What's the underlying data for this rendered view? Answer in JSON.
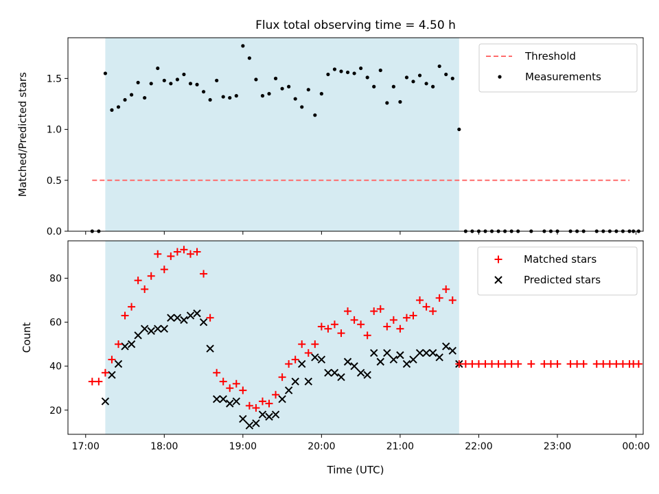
{
  "chart_data": [
    {
      "type": "scatter",
      "title": "Flux total observing time = 4.50 h",
      "xlabel": "",
      "ylabel": "Matched/Predicted stars",
      "ylim": [
        0,
        1.9
      ],
      "yticks": [
        0.0,
        0.5,
        1.0,
        1.5
      ],
      "xticks": [
        "17:00",
        "18:00",
        "19:00",
        "20:00",
        "21:00",
        "22:00",
        "23:00",
        "00:00"
      ],
      "shaded_interval": [
        "17:15",
        "21:45"
      ],
      "shade_color": "#add8e6",
      "legend_position": "top-right",
      "series": [
        {
          "name": "Threshold",
          "style": "dashed-line",
          "color": "#ff6b6b",
          "x": [
            "17:05",
            "23:55"
          ],
          "y": [
            0.5,
            0.5
          ]
        },
        {
          "name": "Measurements",
          "style": "dots",
          "color": "#000000",
          "x": [
            "17:05",
            "17:10",
            "17:15",
            "17:20",
            "17:25",
            "17:30",
            "17:35",
            "17:40",
            "17:45",
            "17:50",
            "17:55",
            "18:00",
            "18:05",
            "18:10",
            "18:15",
            "18:20",
            "18:25",
            "18:30",
            "18:35",
            "18:40",
            "18:45",
            "18:50",
            "18:55",
            "19:00",
            "19:05",
            "19:10",
            "19:15",
            "19:20",
            "19:25",
            "19:30",
            "19:35",
            "19:40",
            "19:45",
            "19:50",
            "19:55",
            "20:00",
            "20:05",
            "20:10",
            "20:15",
            "20:20",
            "20:25",
            "20:30",
            "20:35",
            "20:40",
            "20:45",
            "20:50",
            "20:55",
            "21:00",
            "21:05",
            "21:10",
            "21:15",
            "21:20",
            "21:25",
            "21:30",
            "21:35",
            "21:40",
            "21:45",
            "21:50",
            "21:55",
            "22:00",
            "22:05",
            "22:10",
            "22:15",
            "22:20",
            "22:25",
            "22:30",
            "22:40",
            "22:50",
            "22:55",
            "23:00",
            "23:10",
            "23:15",
            "23:20",
            "23:30",
            "23:35",
            "23:40",
            "23:45",
            "23:50",
            "23:55",
            "23:58",
            "00:02"
          ],
          "y": [
            0,
            0,
            1.55,
            1.19,
            1.22,
            1.29,
            1.34,
            1.46,
            1.31,
            1.45,
            1.6,
            1.48,
            1.45,
            1.49,
            1.54,
            1.45,
            1.44,
            1.37,
            1.29,
            1.48,
            1.32,
            1.31,
            1.33,
            1.82,
            1.7,
            1.49,
            1.33,
            1.35,
            1.5,
            1.4,
            1.42,
            1.3,
            1.22,
            1.39,
            1.14,
            1.35,
            1.54,
            1.59,
            1.57,
            1.56,
            1.55,
            1.6,
            1.51,
            1.42,
            1.58,
            1.26,
            1.42,
            1.27,
            1.51,
            1.47,
            1.53,
            1.45,
            1.42,
            1.62,
            1.54,
            1.5,
            1.0,
            0,
            0,
            0,
            0,
            0,
            0,
            0,
            0,
            0,
            0,
            0,
            0,
            0,
            0,
            0,
            0,
            0,
            0,
            0,
            0,
            0,
            0,
            0,
            0
          ]
        }
      ]
    },
    {
      "type": "scatter",
      "title": "",
      "xlabel": "Time (UTC)",
      "ylabel": "Count",
      "ylim": [
        9,
        97
      ],
      "yticks": [
        20,
        40,
        60,
        80
      ],
      "xticks": [
        "17:00",
        "18:00",
        "19:00",
        "20:00",
        "21:00",
        "22:00",
        "23:00",
        "00:00"
      ],
      "shaded_interval": [
        "17:15",
        "21:45"
      ],
      "shade_color": "#add8e6",
      "legend_position": "top-right",
      "series": [
        {
          "name": "Matched stars",
          "style": "plus",
          "color": "#ff0000",
          "x": [
            "17:05",
            "17:10",
            "17:15",
            "17:20",
            "17:25",
            "17:30",
            "17:35",
            "17:40",
            "17:45",
            "17:50",
            "17:55",
            "18:00",
            "18:05",
            "18:10",
            "18:15",
            "18:20",
            "18:25",
            "18:30",
            "18:35",
            "18:40",
            "18:45",
            "18:50",
            "18:55",
            "19:00",
            "19:05",
            "19:10",
            "19:15",
            "19:20",
            "19:25",
            "19:30",
            "19:35",
            "19:40",
            "19:45",
            "19:50",
            "19:55",
            "20:00",
            "20:05",
            "20:10",
            "20:15",
            "20:20",
            "20:25",
            "20:30",
            "20:35",
            "20:40",
            "20:45",
            "20:50",
            "20:55",
            "21:00",
            "21:05",
            "21:10",
            "21:15",
            "21:20",
            "21:25",
            "21:30",
            "21:35",
            "21:40",
            "21:45",
            "21:50",
            "21:55",
            "22:00",
            "22:05",
            "22:10",
            "22:15",
            "22:20",
            "22:25",
            "22:30",
            "22:40",
            "22:50",
            "22:55",
            "23:00",
            "23:10",
            "23:15",
            "23:20",
            "23:30",
            "23:35",
            "23:40",
            "23:45",
            "23:50",
            "23:55",
            "23:58",
            "00:02"
          ],
          "y": [
            33,
            33,
            37,
            43,
            50,
            63,
            67,
            79,
            75,
            81,
            91,
            84,
            90,
            92,
            93,
            91,
            92,
            82,
            62,
            37,
            33,
            30,
            32,
            29,
            22,
            21,
            24,
            23,
            27,
            35,
            41,
            43,
            50,
            46,
            50,
            58,
            57,
            59,
            55,
            65,
            61,
            59,
            54,
            65,
            66,
            58,
            61,
            57,
            62,
            63,
            70,
            67,
            65,
            71,
            75,
            70,
            41,
            41,
            41,
            41,
            41,
            41,
            41,
            41,
            41,
            41,
            41,
            41,
            41,
            41,
            41,
            41,
            41,
            41,
            41,
            41,
            41,
            41,
            41,
            41,
            41
          ]
        },
        {
          "name": "Predicted stars",
          "style": "x",
          "color": "#000000",
          "x": [
            "17:15",
            "17:20",
            "17:25",
            "17:30",
            "17:35",
            "17:40",
            "17:45",
            "17:50",
            "17:55",
            "18:00",
            "18:05",
            "18:10",
            "18:15",
            "18:20",
            "18:25",
            "18:30",
            "18:35",
            "18:40",
            "18:45",
            "18:50",
            "18:55",
            "19:00",
            "19:05",
            "19:10",
            "19:15",
            "19:20",
            "19:25",
            "19:30",
            "19:35",
            "19:40",
            "19:45",
            "19:50",
            "19:55",
            "20:00",
            "20:05",
            "20:10",
            "20:15",
            "20:20",
            "20:25",
            "20:30",
            "20:35",
            "20:40",
            "20:45",
            "20:50",
            "20:55",
            "21:00",
            "21:05",
            "21:10",
            "21:15",
            "21:20",
            "21:25",
            "21:30",
            "21:35",
            "21:40",
            "21:45"
          ],
          "y": [
            24,
            36,
            41,
            49,
            50,
            54,
            57,
            56,
            57,
            57,
            62,
            62,
            61,
            63,
            64,
            60,
            48,
            25,
            25,
            23,
            24,
            16,
            13,
            14,
            18,
            17,
            18,
            25,
            29,
            33,
            41,
            33,
            44,
            43,
            37,
            37,
            35,
            42,
            40,
            37,
            36,
            46,
            42,
            46,
            43,
            45,
            41,
            43,
            46,
            46,
            46,
            44,
            49,
            47,
            41
          ]
        }
      ]
    }
  ]
}
